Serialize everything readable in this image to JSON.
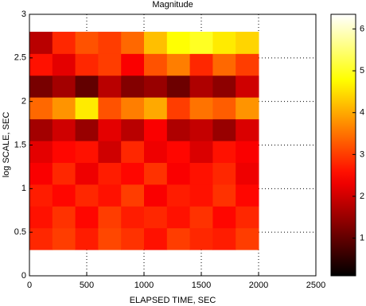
{
  "chart_data": {
    "type": "heatmap",
    "title": "Magnitude",
    "x_label": "ELAPSED TIME, SEC",
    "y_label": "log SCALE, SEC",
    "xlim": [
      0,
      2500
    ],
    "xticks": [
      0,
      500,
      1000,
      1500,
      2000,
      2500
    ],
    "ylim": [
      0,
      3
    ],
    "yticks": [
      0,
      0.5,
      1,
      1.5,
      2,
      2.5,
      3
    ],
    "grid": true,
    "colormap": "hot",
    "x_edges": [
      0,
      200,
      400,
      600,
      800,
      1000,
      1200,
      1400,
      1600,
      1800,
      2000
    ],
    "y_edges": [
      0.3,
      0.55,
      0.8,
      1.05,
      1.3,
      1.55,
      1.8,
      2.05,
      2.3,
      2.55,
      2.8
    ],
    "values": [
      [
        2.8,
        3.0,
        2.7,
        3.1,
        2.9,
        2.6,
        3.0,
        2.8,
        2.7,
        3.0
      ],
      [
        2.6,
        2.9,
        2.5,
        3.0,
        2.7,
        2.8,
        2.6,
        2.9,
        2.5,
        2.8
      ],
      [
        2.7,
        2.5,
        2.8,
        2.6,
        3.0,
        2.4,
        2.7,
        2.6,
        2.9,
        2.5
      ],
      [
        2.4,
        2.8,
        2.3,
        2.7,
        2.5,
        2.9,
        2.4,
        2.6,
        2.8,
        2.3
      ],
      [
        2.2,
        2.5,
        2.6,
        2.0,
        2.8,
        2.3,
        2.5,
        2.1,
        2.6,
        2.4
      ],
      [
        1.6,
        2.0,
        1.5,
        2.2,
        1.8,
        2.4,
        1.7,
        1.9,
        1.5,
        2.1
      ],
      [
        3.4,
        3.8,
        4.6,
        3.2,
        3.6,
        4.0,
        3.0,
        3.5,
        3.3,
        3.8
      ],
      [
        1.2,
        1.6,
        1.0,
        1.8,
        1.3,
        1.5,
        1.1,
        1.7,
        1.4,
        2.0
      ],
      [
        2.6,
        2.2,
        2.8,
        3.0,
        2.4,
        3.2,
        3.6,
        2.8,
        3.4,
        3.0
      ],
      [
        1.8,
        2.8,
        3.2,
        3.0,
        3.4,
        4.2,
        4.8,
        5.0,
        4.6,
        4.4
      ]
    ],
    "clim": [
      0.1,
      6.35
    ],
    "cticks": [
      1,
      2,
      3,
      4,
      5,
      6
    ]
  }
}
